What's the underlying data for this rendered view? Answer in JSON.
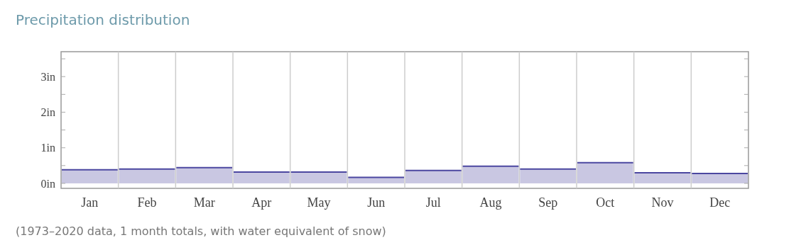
{
  "chart_data": {
    "type": "bar",
    "title": "Precipitation distribution",
    "categories": [
      "Jan",
      "Feb",
      "Mar",
      "Apr",
      "May",
      "Jun",
      "Jul",
      "Aug",
      "Sep",
      "Oct",
      "Nov",
      "Dec"
    ],
    "values": [
      0.38,
      0.4,
      0.44,
      0.32,
      0.32,
      0.17,
      0.36,
      0.48,
      0.4,
      0.58,
      0.3,
      0.28
    ],
    "color": "#4b47a0",
    "ylim": [
      -0.14,
      3.7
    ],
    "yticks": [
      {
        "value": 0,
        "label": "0in"
      },
      {
        "value": 0.5,
        "label": null
      },
      {
        "value": 1,
        "label": "1in"
      },
      {
        "value": 1.5,
        "label": null
      },
      {
        "value": 2,
        "label": "2in"
      },
      {
        "value": 2.5,
        "label": null
      },
      {
        "value": 3,
        "label": "3in"
      },
      {
        "value": 3.5,
        "label": null
      }
    ],
    "annotations": [
      "(1973–2020 data, 1 month totals, with water equivalent of snow)"
    ]
  }
}
